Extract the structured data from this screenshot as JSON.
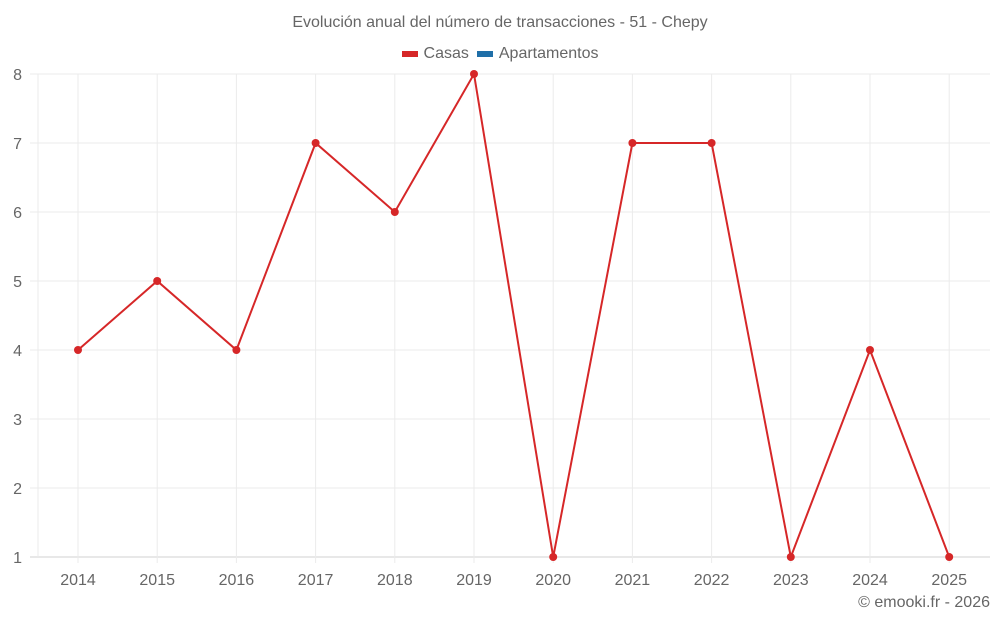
{
  "chart_data": {
    "type": "line",
    "title": "Evolución anual del número de transacciones - 51 - Chepy",
    "xlabel": "",
    "ylabel": "",
    "categories": [
      "2014",
      "2015",
      "2016",
      "2017",
      "2018",
      "2019",
      "2020",
      "2021",
      "2022",
      "2023",
      "2024",
      "2025"
    ],
    "series": [
      {
        "name": "Casas",
        "color": "#d62728",
        "values": [
          4,
          5,
          4,
          7,
          6,
          8,
          1,
          7,
          7,
          1,
          4,
          1
        ]
      },
      {
        "name": "Apartamentos",
        "color": "#1f6fa8",
        "values": []
      }
    ],
    "ylim": [
      1,
      8
    ],
    "yticks": [
      1,
      2,
      3,
      4,
      5,
      6,
      7,
      8
    ],
    "grid": true,
    "legend_position": "top"
  },
  "title": "Evolución anual del número de transacciones - 51 - Chepy",
  "legend": [
    {
      "label": "Casas",
      "color": "#d62728"
    },
    {
      "label": "Apartamentos",
      "color": "#1f6fa8"
    }
  ],
  "credit": "© emooki.fr - 2026"
}
